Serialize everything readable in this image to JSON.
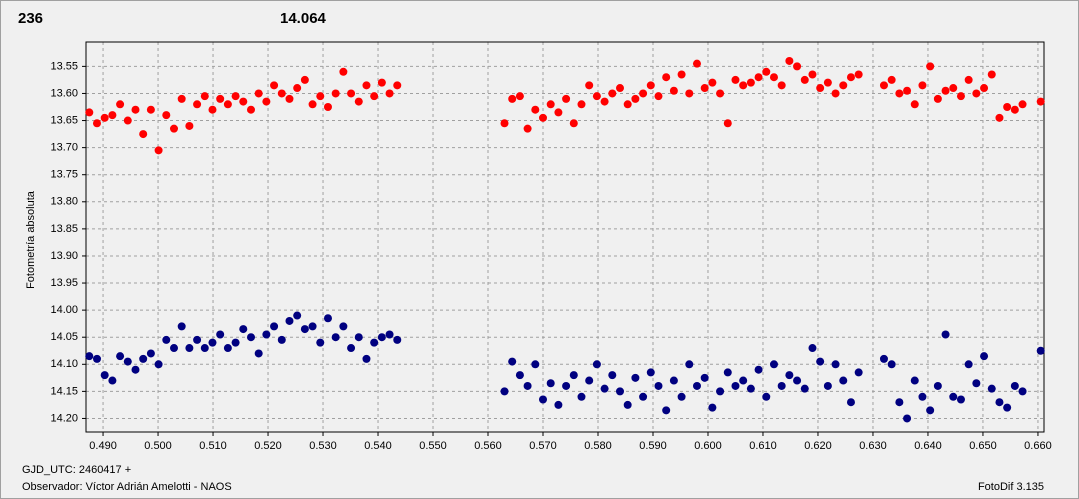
{
  "chart_data": {
    "type": "scatter",
    "annotations": [
      {
        "text": "236",
        "color": "#ff0000"
      },
      {
        "text": "14.064",
        "color": "#000080"
      }
    ],
    "y_label": "Fotometría absoluta",
    "x_label": "GJD_UTC: 2460417 +",
    "observer": "Observador: Víctor Adrián Amelotti - NAOS",
    "software": "FotoDif 3.135",
    "grid": true,
    "y_inverted": true,
    "xlim": [
      0.4869,
      0.6611
    ],
    "ylim": [
      13.505,
      14.225
    ],
    "xticks": [
      {
        "value": 0.49,
        "label": "0.490"
      },
      {
        "value": 0.5,
        "label": "0.500"
      },
      {
        "value": 0.51,
        "label": "0.510"
      },
      {
        "value": 0.52,
        "label": "0.520"
      },
      {
        "value": 0.53,
        "label": "0.530"
      },
      {
        "value": 0.54,
        "label": "0.540"
      },
      {
        "value": 0.55,
        "label": "0.550"
      },
      {
        "value": 0.56,
        "label": "0.560"
      },
      {
        "value": 0.57,
        "label": "0.570"
      },
      {
        "value": 0.58,
        "label": "0.580"
      },
      {
        "value": 0.59,
        "label": "0.590"
      },
      {
        "value": 0.6,
        "label": "0.600"
      },
      {
        "value": 0.61,
        "label": "0.610"
      },
      {
        "value": 0.62,
        "label": "0.620"
      },
      {
        "value": 0.63,
        "label": "0.630"
      },
      {
        "value": 0.64,
        "label": "0.640"
      },
      {
        "value": 0.65,
        "label": "0.650"
      },
      {
        "value": 0.66,
        "label": "0.660"
      }
    ],
    "yticks": [
      13.55,
      {
        "value": 13.6,
        "label": "13.60"
      },
      13.65,
      {
        "value": 13.7,
        "label": "13.70"
      },
      13.75,
      {
        "value": 13.8,
        "label": "13.80"
      },
      13.85,
      {
        "value": 13.9,
        "label": "13.90"
      },
      13.95,
      {
        "value": 14.0,
        "label": "14.00"
      },
      14.05,
      {
        "value": 14.1,
        "label": "14.10"
      },
      14.15,
      {
        "value": 14.2,
        "label": "14.20"
      }
    ],
    "x": [
      0.4875,
      0.4889,
      0.4903,
      0.4917,
      0.4931,
      0.4945,
      0.4959,
      0.4973,
      0.4987,
      0.5001,
      0.5015,
      0.5029,
      0.5043,
      0.5057,
      0.5071,
      0.5085,
      0.5099,
      0.5113,
      0.5127,
      0.5141,
      0.5155,
      0.5169,
      0.5183,
      0.5197,
      0.5211,
      0.5225,
      0.5239,
      0.5253,
      0.5267,
      0.5281,
      0.5295,
      0.5309,
      0.5323,
      0.5337,
      0.5351,
      0.5365,
      0.5379,
      0.5393,
      0.5407,
      0.5421,
      0.5435,
      0.563,
      0.5644,
      0.5658,
      0.5672,
      0.5686,
      0.57,
      0.5714,
      0.5728,
      0.5742,
      0.5756,
      0.577,
      0.5784,
      0.5798,
      0.5812,
      0.5826,
      0.584,
      0.5854,
      0.5868,
      0.5882,
      0.5896,
      0.591,
      0.5924,
      0.5938,
      0.5952,
      0.5966,
      0.598,
      0.5994,
      0.6008,
      0.6022,
      0.6036,
      0.605,
      0.6064,
      0.6078,
      0.6092,
      0.6106,
      0.612,
      0.6134,
      0.6148,
      0.6162,
      0.6176,
      0.619,
      0.6204,
      0.6218,
      0.6232,
      0.6246,
      0.626,
      0.6274,
      0.632,
      0.6334,
      0.6348,
      0.6362,
      0.6376,
      0.639,
      0.6404,
      0.6418,
      0.6432,
      0.6446,
      0.646,
      0.6474,
      0.6488,
      0.6502,
      0.6516,
      0.653,
      0.6544,
      0.6558,
      0.6572,
      0.6605
    ],
    "series": [
      {
        "color": "#ff0000",
        "values": [
          13.635,
          13.655,
          13.645,
          13.64,
          13.62,
          13.65,
          13.63,
          13.675,
          13.63,
          13.705,
          13.64,
          13.665,
          13.61,
          13.66,
          13.62,
          13.605,
          13.63,
          13.61,
          13.62,
          13.605,
          13.615,
          13.63,
          13.6,
          13.615,
          13.585,
          13.6,
          13.61,
          13.59,
          13.575,
          13.62,
          13.605,
          13.625,
          13.6,
          13.56,
          13.6,
          13.615,
          13.585,
          13.605,
          13.58,
          13.6,
          13.585,
          13.655,
          13.61,
          13.605,
          13.665,
          13.63,
          13.645,
          13.62,
          13.635,
          13.61,
          13.655,
          13.62,
          13.585,
          13.605,
          13.615,
          13.6,
          13.59,
          13.62,
          13.61,
          13.6,
          13.585,
          13.605,
          13.57,
          13.595,
          13.565,
          13.6,
          13.545,
          13.59,
          13.58,
          13.6,
          13.655,
          13.575,
          13.585,
          13.58,
          13.57,
          13.56,
          13.57,
          13.585,
          13.54,
          13.55,
          13.575,
          13.565,
          13.59,
          13.58,
          13.6,
          13.585,
          13.57,
          13.565,
          13.585,
          13.575,
          13.6,
          13.595,
          13.62,
          13.585,
          13.55,
          13.61,
          13.595,
          13.59,
          13.605,
          13.575,
          13.6,
          13.59,
          13.565,
          13.645,
          13.625,
          13.63,
          13.62,
          13.615
        ]
      },
      {
        "color": "#000080",
        "values": [
          14.085,
          14.09,
          14.12,
          14.13,
          14.085,
          14.095,
          14.11,
          14.09,
          14.08,
          14.1,
          14.055,
          14.07,
          14.03,
          14.07,
          14.055,
          14.07,
          14.06,
          14.045,
          14.07,
          14.06,
          14.035,
          14.05,
          14.08,
          14.045,
          14.03,
          14.055,
          14.02,
          14.01,
          14.035,
          14.03,
          14.06,
          14.015,
          14.05,
          14.03,
          14.07,
          14.05,
          14.09,
          14.06,
          14.05,
          14.045,
          14.055,
          14.15,
          14.095,
          14.12,
          14.14,
          14.1,
          14.165,
          14.135,
          14.175,
          14.14,
          14.12,
          14.16,
          14.13,
          14.1,
          14.145,
          14.12,
          14.15,
          14.175,
          14.125,
          14.16,
          14.115,
          14.14,
          14.185,
          14.13,
          14.16,
          14.1,
          14.14,
          14.125,
          14.18,
          14.15,
          14.115,
          14.14,
          14.13,
          14.145,
          14.11,
          14.16,
          14.1,
          14.14,
          14.12,
          14.13,
          14.145,
          14.07,
          14.095,
          14.14,
          14.1,
          14.13,
          14.17,
          14.115,
          14.09,
          14.1,
          14.17,
          14.2,
          14.13,
          14.16,
          14.185,
          14.14,
          14.045,
          14.16,
          14.165,
          14.1,
          14.135,
          14.085,
          14.145,
          14.17,
          14.18,
          14.14,
          14.15,
          14.075
        ]
      }
    ]
  }
}
